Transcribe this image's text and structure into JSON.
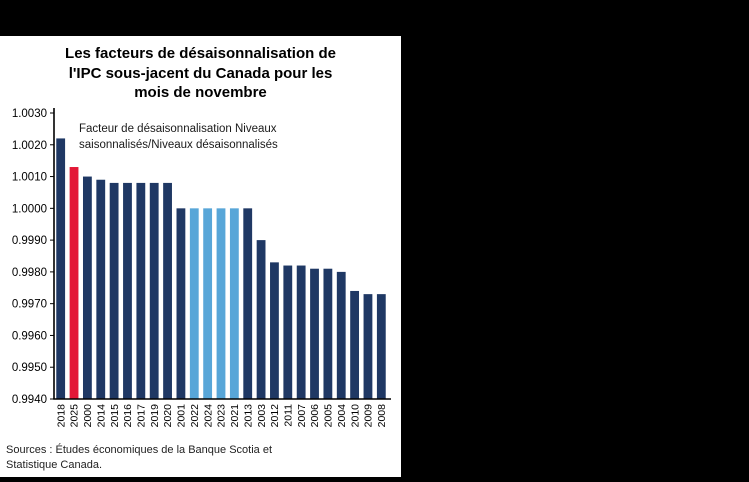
{
  "frame": {
    "background_color": "#000000",
    "panel_color": "#ffffff"
  },
  "chart_data": {
    "type": "bar",
    "title": "Les facteurs de désaisonnalisation de l'IPC sous-jacent du Canada pour les mois de novembre",
    "title_lines": [
      "Les facteurs de désaisonnalisation de",
      "l'IPC sous-jacent du Canada pour les",
      "mois de novembre"
    ],
    "annotation": "Facteur de désaisonnalisation Niveaux saisonnalisés/Niveaux désaisonnalisés",
    "annotation_lines": [
      "Facteur de désaisonnalisation Niveaux",
      "saisonnalisés/Niveaux désaisonnalisés"
    ],
    "categories": [
      "2018",
      "2025",
      "2000",
      "2014",
      "2015",
      "2016",
      "2017",
      "2019",
      "2020",
      "2001",
      "2022",
      "2024",
      "2023",
      "2021",
      "2013",
      "2003",
      "2012",
      "2011",
      "2007",
      "2006",
      "2005",
      "2004",
      "2010",
      "2009",
      "2008"
    ],
    "values": [
      1.0022,
      1.0013,
      1.001,
      1.0009,
      1.0008,
      1.0008,
      1.0008,
      1.0008,
      1.0008,
      1.0,
      1.0,
      1.0,
      1.0,
      1.0,
      1.0,
      0.999,
      0.9983,
      0.9982,
      0.9982,
      0.9981,
      0.9981,
      0.998,
      0.9974,
      0.9973,
      0.9973
    ],
    "bar_colors": [
      "navy",
      "red",
      "navy",
      "navy",
      "navy",
      "navy",
      "navy",
      "navy",
      "navy",
      "navy",
      "blue",
      "blue",
      "blue",
      "blue",
      "navy",
      "navy",
      "navy",
      "navy",
      "navy",
      "navy",
      "navy",
      "navy",
      "navy",
      "navy",
      "navy"
    ],
    "colors": {
      "navy": "#1f3864",
      "red": "#e31837",
      "blue": "#58a6d8"
    },
    "ylim": [
      0.994,
      1.003
    ],
    "ytick_step": 0.001,
    "ytick_decimals": 4,
    "grid": false,
    "legend": "none",
    "xlabel": "",
    "ylabel": "",
    "source_lines": [
      "Sources : Études économiques de la Banque Scotia et",
      "Statistique Canada."
    ]
  }
}
